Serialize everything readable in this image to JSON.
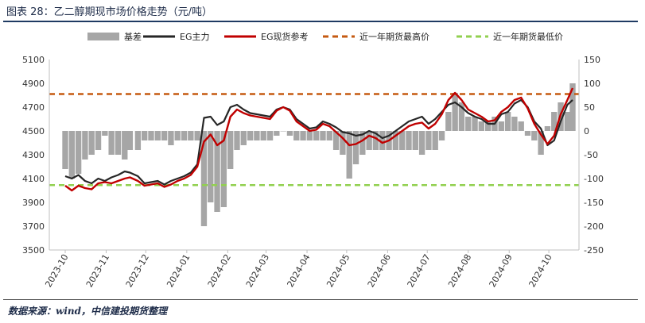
{
  "figure": {
    "caption": "图表 28：乙二醇期现市场价格走势（元/吨）",
    "source": "数据来源：wind，中信建投期货整理"
  },
  "colors": {
    "basis": "#a6a6a6",
    "futures": "#262626",
    "spot": "#c00000",
    "yearHigh": "#c55a11",
    "yearLow": "#92d050"
  },
  "chart_data": {
    "type": "line",
    "legend": [
      "基差",
      "EG主力",
      "EG现货参考",
      "近一年期货最高价",
      "近一年期货最低价"
    ],
    "legend_position": "top",
    "x_tick_labels": [
      "2023-10",
      "2023-11",
      "2023-12",
      "2024-01",
      "2024-02",
      "2024-03",
      "2024-04",
      "2024-05",
      "2024-06",
      "2024-07",
      "2024-08",
      "2024-09",
      "2024-10"
    ],
    "x_tick_dates": [
      "2023-10-01",
      "2023-11-01",
      "2023-12-01",
      "2024-01-01",
      "2024-02-01",
      "2024-03-01",
      "2024-04-01",
      "2024-05-01",
      "2024-06-01",
      "2024-07-01",
      "2024-08-01",
      "2024-09-01",
      "2024-10-01"
    ],
    "x_range": [
      "2023-10-01",
      "2024-10-19"
    ],
    "y_left": {
      "ticks": [
        3500,
        3700,
        3900,
        4100,
        4300,
        4500,
        4700,
        4900,
        5100
      ],
      "range": [
        3500,
        5100
      ]
    },
    "y_right": {
      "ticks": [
        -250,
        -200,
        -150,
        -100,
        -50,
        0,
        50,
        100,
        150
      ],
      "range": [
        -250,
        150
      ]
    },
    "yearHigh": 4810,
    "yearLow": 4045,
    "futures": [
      [
        "2023-10-01",
        4120
      ],
      [
        "2023-10-06",
        4100
      ],
      [
        "2023-10-11",
        4130
      ],
      [
        "2023-10-16",
        4080
      ],
      [
        "2023-10-21",
        4060
      ],
      [
        "2023-10-26",
        4100
      ],
      [
        "2023-10-31",
        4080
      ],
      [
        "2023-11-05",
        4110
      ],
      [
        "2023-11-10",
        4130
      ],
      [
        "2023-11-15",
        4160
      ],
      [
        "2023-11-19",
        4150
      ],
      [
        "2023-11-25",
        4120
      ],
      [
        "2023-11-30",
        4060
      ],
      [
        "2023-12-05",
        4070
      ],
      [
        "2023-12-10",
        4080
      ],
      [
        "2023-12-15",
        4050
      ],
      [
        "2023-12-20",
        4080
      ],
      [
        "2023-12-25",
        4100
      ],
      [
        "2023-12-30",
        4120
      ],
      [
        "2024-01-04",
        4150
      ],
      [
        "2024-01-09",
        4220
      ],
      [
        "2024-01-14",
        4610
      ],
      [
        "2024-01-19",
        4620
      ],
      [
        "2024-01-24",
        4550
      ],
      [
        "2024-01-29",
        4580
      ],
      [
        "2024-02-03",
        4700
      ],
      [
        "2024-02-08",
        4720
      ],
      [
        "2024-02-13",
        4680
      ],
      [
        "2024-02-18",
        4650
      ],
      [
        "2024-02-23",
        4640
      ],
      [
        "2024-02-28",
        4630
      ],
      [
        "2024-03-04",
        4620
      ],
      [
        "2024-03-09",
        4680
      ],
      [
        "2024-03-14",
        4700
      ],
      [
        "2024-03-19",
        4680
      ],
      [
        "2024-03-24",
        4600
      ],
      [
        "2024-03-29",
        4560
      ],
      [
        "2024-04-03",
        4520
      ],
      [
        "2024-04-08",
        4530
      ],
      [
        "2024-04-13",
        4580
      ],
      [
        "2024-04-18",
        4560
      ],
      [
        "2024-04-23",
        4530
      ],
      [
        "2024-04-28",
        4490
      ],
      [
        "2024-05-03",
        4480
      ],
      [
        "2024-05-08",
        4460
      ],
      [
        "2024-05-13",
        4470
      ],
      [
        "2024-05-18",
        4500
      ],
      [
        "2024-05-23",
        4480
      ],
      [
        "2024-05-28",
        4440
      ],
      [
        "2024-06-02",
        4460
      ],
      [
        "2024-06-07",
        4500
      ],
      [
        "2024-06-12",
        4540
      ],
      [
        "2024-06-17",
        4580
      ],
      [
        "2024-06-22",
        4600
      ],
      [
        "2024-06-27",
        4620
      ],
      [
        "2024-07-02",
        4560
      ],
      [
        "2024-07-07",
        4600
      ],
      [
        "2024-07-12",
        4660
      ],
      [
        "2024-07-17",
        4720
      ],
      [
        "2024-07-22",
        4740
      ],
      [
        "2024-07-27",
        4700
      ],
      [
        "2024-08-01",
        4650
      ],
      [
        "2024-08-06",
        4620
      ],
      [
        "2024-08-11",
        4600
      ],
      [
        "2024-08-16",
        4560
      ],
      [
        "2024-08-21",
        4560
      ],
      [
        "2024-08-26",
        4640
      ],
      [
        "2024-08-31",
        4660
      ],
      [
        "2024-09-05",
        4730
      ],
      [
        "2024-09-10",
        4760
      ],
      [
        "2024-09-15",
        4700
      ],
      [
        "2024-09-20",
        4580
      ],
      [
        "2024-09-25",
        4520
      ],
      [
        "2024-09-30",
        4380
      ],
      [
        "2024-10-05",
        4420
      ],
      [
        "2024-10-10",
        4580
      ],
      [
        "2024-10-15",
        4720
      ],
      [
        "2024-10-19",
        4760
      ]
    ],
    "spot": [
      [
        "2023-10-01",
        4040
      ],
      [
        "2023-10-06",
        4000
      ],
      [
        "2023-10-11",
        4040
      ],
      [
        "2023-10-16",
        4020
      ],
      [
        "2023-10-21",
        4010
      ],
      [
        "2023-10-26",
        4060
      ],
      [
        "2023-10-31",
        4070
      ],
      [
        "2023-11-05",
        4060
      ],
      [
        "2023-11-10",
        4080
      ],
      [
        "2023-11-15",
        4100
      ],
      [
        "2023-11-19",
        4110
      ],
      [
        "2023-11-25",
        4080
      ],
      [
        "2023-11-30",
        4040
      ],
      [
        "2023-12-05",
        4050
      ],
      [
        "2023-12-10",
        4060
      ],
      [
        "2023-12-15",
        4030
      ],
      [
        "2023-12-20",
        4050
      ],
      [
        "2023-12-25",
        4080
      ],
      [
        "2023-12-30",
        4100
      ],
      [
        "2024-01-04",
        4130
      ],
      [
        "2024-01-09",
        4200
      ],
      [
        "2024-01-14",
        4410
      ],
      [
        "2024-01-19",
        4470
      ],
      [
        "2024-01-24",
        4380
      ],
      [
        "2024-01-29",
        4420
      ],
      [
        "2024-02-03",
        4620
      ],
      [
        "2024-02-08",
        4680
      ],
      [
        "2024-02-13",
        4650
      ],
      [
        "2024-02-18",
        4630
      ],
      [
        "2024-02-23",
        4620
      ],
      [
        "2024-02-28",
        4610
      ],
      [
        "2024-03-04",
        4600
      ],
      [
        "2024-03-09",
        4670
      ],
      [
        "2024-03-14",
        4700
      ],
      [
        "2024-03-19",
        4670
      ],
      [
        "2024-03-24",
        4580
      ],
      [
        "2024-03-29",
        4540
      ],
      [
        "2024-04-03",
        4500
      ],
      [
        "2024-04-08",
        4510
      ],
      [
        "2024-04-13",
        4560
      ],
      [
        "2024-04-18",
        4540
      ],
      [
        "2024-04-23",
        4490
      ],
      [
        "2024-04-28",
        4440
      ],
      [
        "2024-05-03",
        4380
      ],
      [
        "2024-05-08",
        4390
      ],
      [
        "2024-05-13",
        4420
      ],
      [
        "2024-05-18",
        4460
      ],
      [
        "2024-05-23",
        4440
      ],
      [
        "2024-05-28",
        4400
      ],
      [
        "2024-06-02",
        4420
      ],
      [
        "2024-06-07",
        4460
      ],
      [
        "2024-06-12",
        4500
      ],
      [
        "2024-06-17",
        4540
      ],
      [
        "2024-06-22",
        4560
      ],
      [
        "2024-06-27",
        4570
      ],
      [
        "2024-07-02",
        4520
      ],
      [
        "2024-07-07",
        4560
      ],
      [
        "2024-07-12",
        4640
      ],
      [
        "2024-07-17",
        4760
      ],
      [
        "2024-07-22",
        4820
      ],
      [
        "2024-07-27",
        4760
      ],
      [
        "2024-08-01",
        4680
      ],
      [
        "2024-08-06",
        4650
      ],
      [
        "2024-08-11",
        4620
      ],
      [
        "2024-08-16",
        4580
      ],
      [
        "2024-08-21",
        4590
      ],
      [
        "2024-08-26",
        4660
      ],
      [
        "2024-08-31",
        4700
      ],
      [
        "2024-09-05",
        4760
      ],
      [
        "2024-09-10",
        4780
      ],
      [
        "2024-09-15",
        4690
      ],
      [
        "2024-09-20",
        4560
      ],
      [
        "2024-09-25",
        4470
      ],
      [
        "2024-09-30",
        4390
      ],
      [
        "2024-10-05",
        4460
      ],
      [
        "2024-10-10",
        4640
      ],
      [
        "2024-10-15",
        4760
      ],
      [
        "2024-10-19",
        4860
      ]
    ]
  }
}
